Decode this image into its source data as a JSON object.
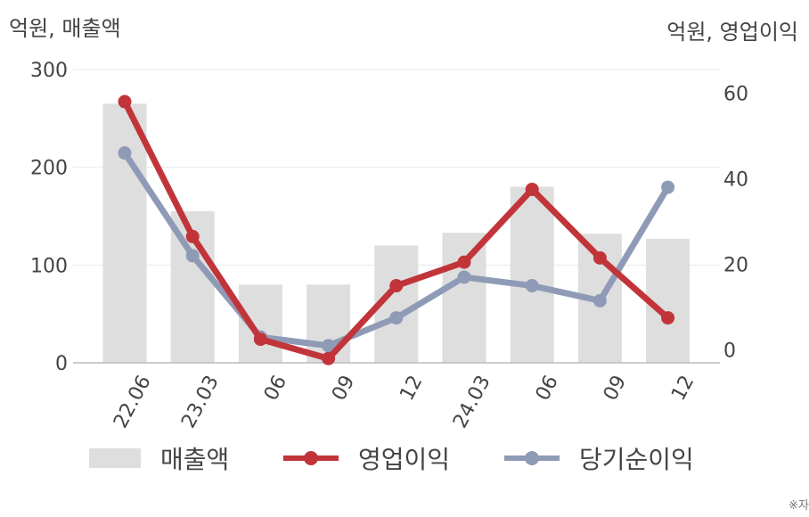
{
  "units": {
    "left": "억원, 매출액",
    "right": "억원, 영업이익"
  },
  "note": "※자",
  "colors": {
    "revenue": "#dedede",
    "operating_profit": "#c1353a",
    "net_profit": "#8f9bb6",
    "grid": "#e9e9e9",
    "axis": "#bbbbbb",
    "text": "#444444"
  },
  "chart_data": {
    "type": "bar",
    "categories": [
      "22.06",
      "23.03",
      "06",
      "09",
      "12",
      "24.03",
      "06",
      "09",
      "12"
    ],
    "series": [
      {
        "name": "매출액",
        "type": "bar",
        "axis": "left",
        "values": [
          265,
          155,
          80,
          80,
          120,
          133,
          180,
          132,
          127
        ]
      },
      {
        "name": "영업이익",
        "type": "line",
        "axis": "right",
        "values": [
          58,
          26.5,
          2.5,
          -2,
          15,
          20.5,
          37.5,
          21.5,
          7.5
        ]
      },
      {
        "name": "당기순이익",
        "type": "line",
        "axis": "right",
        "values": [
          46,
          22,
          3,
          1,
          7.5,
          17,
          15,
          11.5,
          38
        ]
      }
    ],
    "y_left": {
      "ticks": [
        0,
        100,
        200,
        300
      ],
      "range": [
        0,
        300
      ]
    },
    "y_right": {
      "ticks": [
        0,
        20,
        40,
        60
      ],
      "range": [
        -3,
        65.5
      ]
    },
    "grid": true,
    "legend": "bottom"
  }
}
